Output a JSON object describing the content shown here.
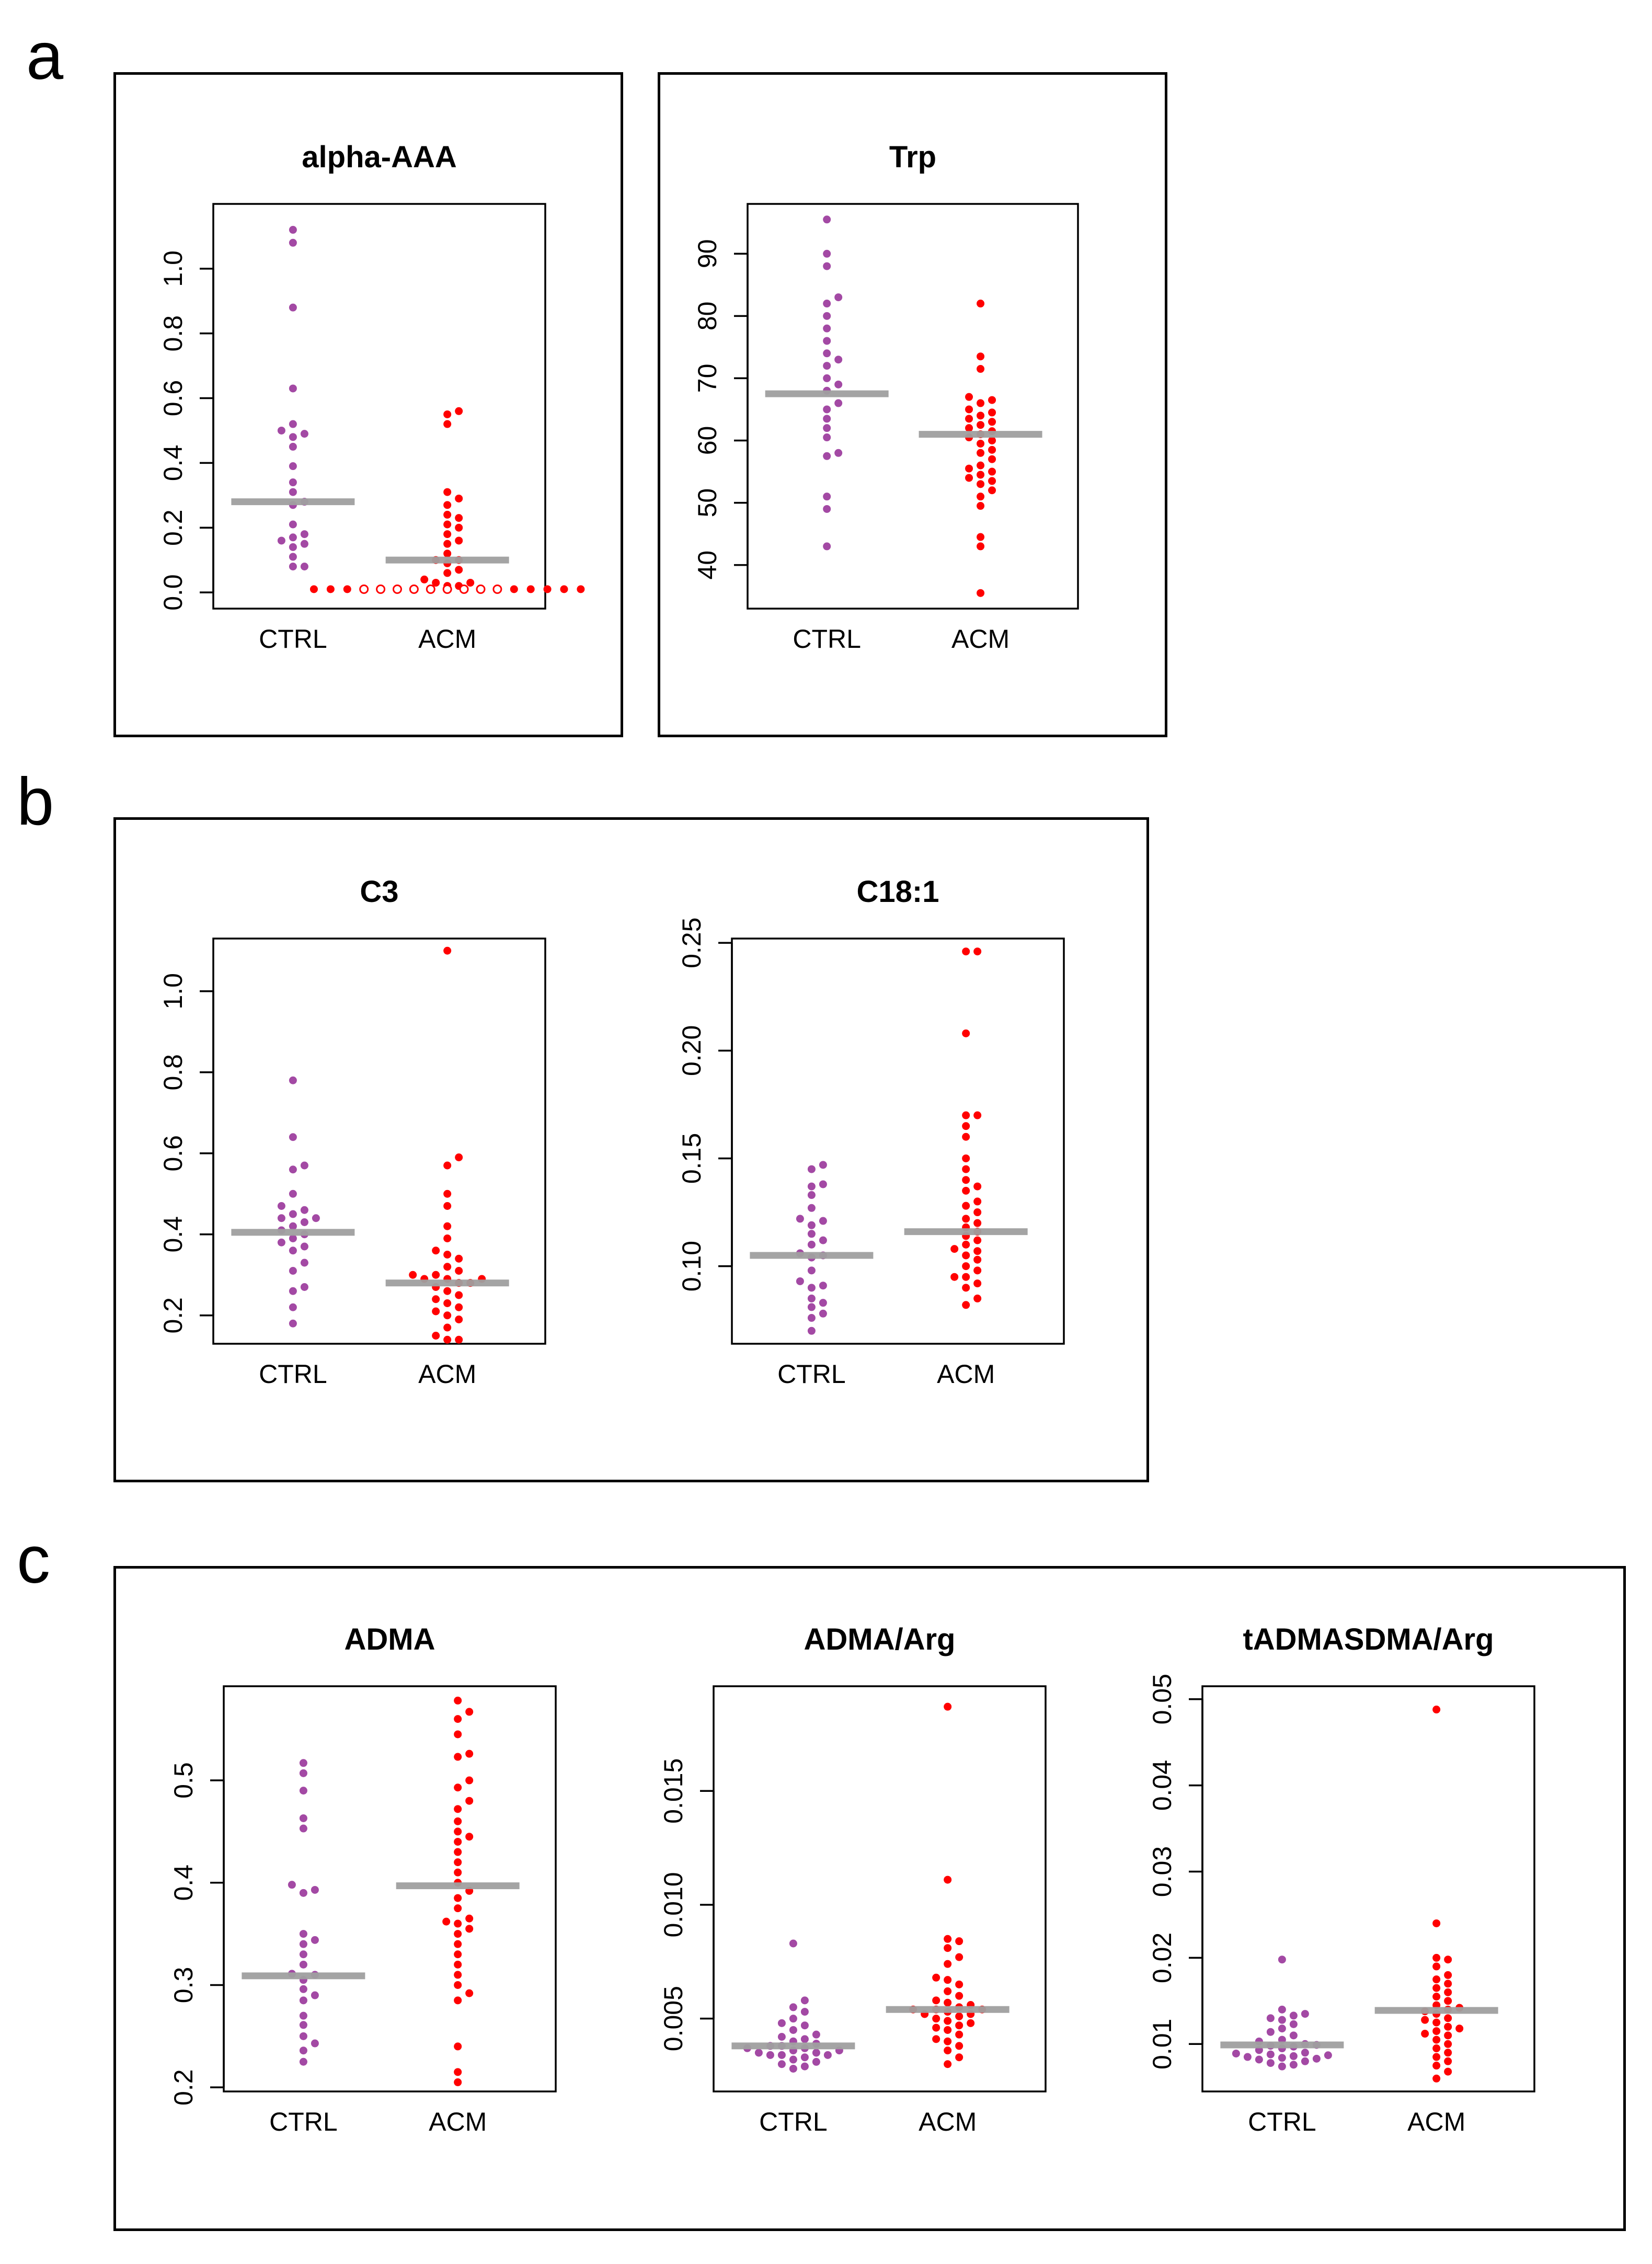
{
  "colors": {
    "ctrl": "#a349a4",
    "acm": "#ff0000",
    "median": "#a0a0a0",
    "axis": "#000000"
  },
  "panels": {
    "a": {
      "label": "a"
    },
    "b": {
      "label": "b"
    },
    "c": {
      "label": "c"
    }
  },
  "chart_data": [
    {
      "type": "scatter",
      "title": "alpha-AAA",
      "categories": [
        "CTRL",
        "ACM"
      ],
      "ylim": [
        -0.05,
        1.2
      ],
      "yticks": [
        0.0,
        0.2,
        0.4,
        0.6,
        0.8,
        1.0
      ],
      "series": [
        {
          "name": "CTRL",
          "values": [
            1.12,
            1.08,
            0.88,
            0.63,
            0.52,
            0.5,
            0.49,
            0.48,
            0.45,
            0.39,
            0.34,
            0.31,
            0.28,
            0.27,
            0.21,
            0.18,
            0.17,
            0.16,
            0.15,
            0.14,
            0.11,
            0.08,
            0.08
          ],
          "median": 0.28
        },
        {
          "name": "ACM",
          "values": [
            0.56,
            0.55,
            0.52,
            0.31,
            0.29,
            0.27,
            0.24,
            0.23,
            0.21,
            0.2,
            0.18,
            0.16,
            0.15,
            0.12,
            0.1,
            0.1,
            0.09,
            0.07,
            0.06,
            0.04,
            0.03,
            0.03,
            0.02,
            0.02
          ],
          "median": 0.1,
          "below_detection": {
            "count": 17,
            "value": 0.01,
            "note": "ACM values shown as filled dots at the edges and open circles in the middle"
          }
        }
      ]
    },
    {
      "type": "scatter",
      "title": "Trp",
      "categories": [
        "CTRL",
        "ACM"
      ],
      "ylim": [
        33,
        98
      ],
      "yticks": [
        40,
        50,
        60,
        70,
        80,
        90
      ],
      "series": [
        {
          "name": "CTRL",
          "values": [
            95.5,
            90,
            88,
            83,
            82,
            80,
            78,
            76,
            74,
            73,
            72,
            70,
            69,
            68,
            66,
            65,
            63.5,
            62,
            60.5,
            58,
            57.5,
            51,
            49,
            43
          ],
          "median": 67.5
        },
        {
          "name": "ACM",
          "values": [
            82,
            73.5,
            71.5,
            67,
            66.5,
            66,
            65,
            64.5,
            64,
            63.5,
            63,
            62.5,
            62,
            61.5,
            61,
            60.5,
            60,
            59.5,
            58.5,
            58,
            57,
            56,
            55.5,
            55,
            54.5,
            54,
            53.5,
            53,
            52,
            51,
            49.5,
            44.5,
            43,
            35.5
          ],
          "median": 61
        }
      ]
    },
    {
      "type": "scatter",
      "title": "C3",
      "categories": [
        "CTRL",
        "ACM"
      ],
      "ylim": [
        0.13,
        1.13
      ],
      "yticks": [
        0.2,
        0.4,
        0.6,
        0.8,
        1.0
      ],
      "series": [
        {
          "name": "CTRL",
          "values": [
            0.78,
            0.64,
            0.57,
            0.56,
            0.5,
            0.47,
            0.46,
            0.45,
            0.44,
            0.44,
            0.43,
            0.42,
            0.41,
            0.4,
            0.39,
            0.38,
            0.37,
            0.36,
            0.33,
            0.31,
            0.27,
            0.26,
            0.22,
            0.18
          ],
          "median": 0.405
        },
        {
          "name": "ACM",
          "values": [
            1.1,
            0.59,
            0.57,
            0.5,
            0.47,
            0.42,
            0.39,
            0.36,
            0.35,
            0.34,
            0.32,
            0.31,
            0.3,
            0.3,
            0.29,
            0.29,
            0.29,
            0.28,
            0.28,
            0.27,
            0.26,
            0.25,
            0.24,
            0.23,
            0.22,
            0.21,
            0.2,
            0.19,
            0.17,
            0.15,
            0.14,
            0.14
          ],
          "median": 0.28
        }
      ]
    },
    {
      "type": "scatter",
      "title": "C18:1",
      "categories": [
        "CTRL",
        "ACM"
      ],
      "ylim": [
        0.064,
        0.252
      ],
      "yticks": [
        0.1,
        0.15,
        0.2,
        0.25
      ],
      "series": [
        {
          "name": "CTRL",
          "values": [
            0.147,
            0.145,
            0.138,
            0.137,
            0.133,
            0.127,
            0.122,
            0.121,
            0.119,
            0.115,
            0.112,
            0.11,
            0.106,
            0.105,
            0.104,
            0.098,
            0.093,
            0.091,
            0.09,
            0.085,
            0.083,
            0.081,
            0.078,
            0.076,
            0.07
          ],
          "median": 0.105
        },
        {
          "name": "ACM",
          "values": [
            0.246,
            0.246,
            0.208,
            0.17,
            0.17,
            0.165,
            0.16,
            0.15,
            0.145,
            0.14,
            0.137,
            0.135,
            0.13,
            0.128,
            0.125,
            0.122,
            0.12,
            0.118,
            0.116,
            0.114,
            0.112,
            0.11,
            0.108,
            0.107,
            0.105,
            0.103,
            0.1,
            0.098,
            0.095,
            0.095,
            0.092,
            0.09,
            0.085,
            0.082
          ],
          "median": 0.116
        }
      ]
    },
    {
      "type": "scatter",
      "title": "ADMA",
      "categories": [
        "CTRL",
        "ACM"
      ],
      "ylim": [
        0.196,
        0.592
      ],
      "yticks": [
        0.2,
        0.3,
        0.4,
        0.5
      ],
      "series": [
        {
          "name": "CTRL",
          "values": [
            0.517,
            0.507,
            0.49,
            0.463,
            0.453,
            0.398,
            0.393,
            0.39,
            0.35,
            0.344,
            0.34,
            0.33,
            0.32,
            0.311,
            0.31,
            0.305,
            0.296,
            0.29,
            0.285,
            0.27,
            0.261,
            0.25,
            0.243,
            0.236,
            0.225
          ],
          "median": 0.309
        },
        {
          "name": "ACM",
          "values": [
            0.578,
            0.567,
            0.56,
            0.545,
            0.526,
            0.523,
            0.5,
            0.493,
            0.48,
            0.472,
            0.46,
            0.45,
            0.445,
            0.44,
            0.43,
            0.42,
            0.41,
            0.4,
            0.392,
            0.385,
            0.375,
            0.365,
            0.362,
            0.36,
            0.355,
            0.35,
            0.34,
            0.33,
            0.32,
            0.31,
            0.3,
            0.292,
            0.285,
            0.24,
            0.215,
            0.205
          ],
          "median": 0.397
        }
      ]
    },
    {
      "type": "scatter",
      "title": "ADMA/Arg",
      "categories": [
        "CTRL",
        "ACM"
      ],
      "ylim": [
        0.0018,
        0.0196
      ],
      "yticks": [
        0.005,
        0.01,
        0.015
      ],
      "series": [
        {
          "name": "CTRL",
          "values": [
            0.0083,
            0.0058,
            0.0055,
            0.0053,
            0.005,
            0.0048,
            0.0047,
            0.0045,
            0.0043,
            0.0042,
            0.0041,
            0.004,
            0.0039,
            0.0038,
            0.0038,
            0.0037,
            0.0037,
            0.0036,
            0.0036,
            0.0035,
            0.0035,
            0.0034,
            0.0034,
            0.0034,
            0.0033,
            0.0032,
            0.0031,
            0.003,
            0.0029,
            0.0028
          ],
          "median": 0.0038
        },
        {
          "name": "ACM",
          "values": [
            0.0187,
            0.0111,
            0.0085,
            0.0084,
            0.0081,
            0.0077,
            0.0074,
            0.0068,
            0.0067,
            0.0065,
            0.0062,
            0.006,
            0.0058,
            0.0057,
            0.0056,
            0.0055,
            0.0054,
            0.0054,
            0.0054,
            0.0053,
            0.0052,
            0.0052,
            0.0051,
            0.005,
            0.0049,
            0.0048,
            0.0047,
            0.0046,
            0.0045,
            0.0043,
            0.0041,
            0.004,
            0.0038,
            0.0036,
            0.0033,
            0.003
          ],
          "median": 0.0054
        }
      ]
    },
    {
      "type": "scatter",
      "title": "tADMASDMA/Arg",
      "categories": [
        "CTRL",
        "ACM"
      ],
      "ylim": [
        0.0045,
        0.0515
      ],
      "yticks": [
        0.01,
        0.02,
        0.03,
        0.04,
        0.05
      ],
      "series": [
        {
          "name": "CTRL",
          "values": [
            0.0198,
            0.014,
            0.0135,
            0.0133,
            0.013,
            0.0128,
            0.0123,
            0.0118,
            0.0114,
            0.011,
            0.0105,
            0.0103,
            0.01,
            0.0099,
            0.0098,
            0.0097,
            0.0095,
            0.0093,
            0.009,
            0.0089,
            0.0088,
            0.0087,
            0.0086,
            0.0085,
            0.0084,
            0.0083,
            0.0082,
            0.008,
            0.0078,
            0.0076,
            0.0074
          ],
          "median": 0.0099
        },
        {
          "name": "ACM",
          "values": [
            0.0488,
            0.024,
            0.02,
            0.0198,
            0.019,
            0.018,
            0.0175,
            0.017,
            0.0165,
            0.016,
            0.0155,
            0.015,
            0.0145,
            0.0142,
            0.014,
            0.0138,
            0.0135,
            0.013,
            0.0128,
            0.0125,
            0.012,
            0.0118,
            0.0115,
            0.0112,
            0.011,
            0.0105,
            0.01,
            0.0095,
            0.009,
            0.0085,
            0.008,
            0.0075,
            0.0068,
            0.006
          ],
          "median": 0.0139
        }
      ]
    }
  ]
}
